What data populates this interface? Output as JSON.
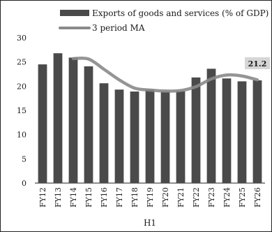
{
  "chart_data": {
    "type": "bar",
    "title": "",
    "xlabel": "H1",
    "ylabel": "",
    "ylim": [
      0,
      30
    ],
    "yticks": [
      "0",
      "5",
      "10",
      "15",
      "20",
      "25",
      "30"
    ],
    "grid": false,
    "legend_position": "top",
    "categories": [
      "FY12",
      "FY13",
      "FY14",
      "FY15",
      "FY16",
      "FY17",
      "FY18",
      "FY19",
      "FY20",
      "FY21",
      "FY22",
      "FY23",
      "FY24",
      "FY25",
      "FY26"
    ],
    "series": [
      {
        "name": "Exports of goods and services (% of GDP)",
        "type": "bar",
        "color": "#4a4a4a",
        "values": [
          24.5,
          26.8,
          25.9,
          24.1,
          20.6,
          19.3,
          18.9,
          19.3,
          18.9,
          19.0,
          21.8,
          23.6,
          21.6,
          21.0,
          21.2
        ]
      },
      {
        "name": "3 period MA",
        "type": "line",
        "color": "#8a8a8a",
        "values": [
          null,
          null,
          25.7,
          25.6,
          23.5,
          21.3,
          19.6,
          19.2,
          19.0,
          19.1,
          19.9,
          21.5,
          22.3,
          22.1,
          21.3
        ]
      }
    ],
    "annotations": [
      {
        "category": "FY26",
        "text": "21.2"
      }
    ]
  }
}
